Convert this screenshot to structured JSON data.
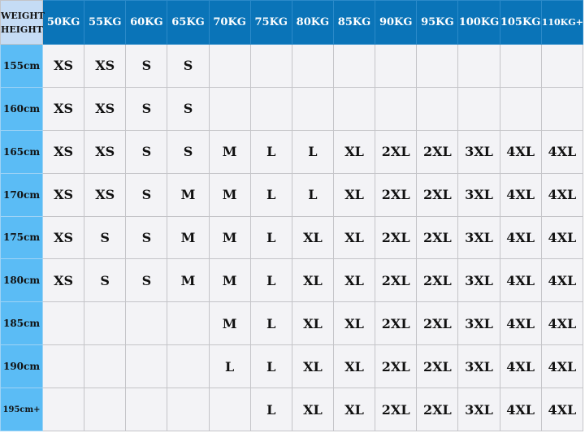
{
  "corner": {
    "line1": "WEIGHT",
    "line2": "HEIGHT"
  },
  "weights": [
    "50KG",
    "55KG",
    "60KG",
    "65KG",
    "70KG",
    "75KG",
    "80KG",
    "85KG",
    "90KG",
    "95KG",
    "100KG",
    "105KG",
    "110KG+"
  ],
  "rows": [
    {
      "height": "155cm",
      "sizes": [
        "XS",
        "XS",
        "S",
        "S",
        "",
        "",
        "",
        "",
        "",
        "",
        "",
        "",
        ""
      ]
    },
    {
      "height": "160cm",
      "sizes": [
        "XS",
        "XS",
        "S",
        "S",
        "",
        "",
        "",
        "",
        "",
        "",
        "",
        "",
        ""
      ]
    },
    {
      "height": "165cm",
      "sizes": [
        "XS",
        "XS",
        "S",
        "S",
        "M",
        "L",
        "L",
        "XL",
        "2XL",
        "2XL",
        "3XL",
        "4XL",
        "4XL"
      ]
    },
    {
      "height": "170cm",
      "sizes": [
        "XS",
        "XS",
        "S",
        "M",
        "M",
        "L",
        "L",
        "XL",
        "2XL",
        "2XL",
        "3XL",
        "4XL",
        "4XL"
      ]
    },
    {
      "height": "175cm",
      "sizes": [
        "XS",
        "S",
        "S",
        "M",
        "M",
        "L",
        "XL",
        "XL",
        "2XL",
        "2XL",
        "3XL",
        "4XL",
        "4XL"
      ]
    },
    {
      "height": "180cm",
      "sizes": [
        "XS",
        "S",
        "S",
        "M",
        "M",
        "L",
        "XL",
        "XL",
        "2XL",
        "2XL",
        "3XL",
        "4XL",
        "4XL"
      ]
    },
    {
      "height": "185cm",
      "sizes": [
        "",
        "",
        "",
        "",
        "M",
        "L",
        "XL",
        "XL",
        "2XL",
        "2XL",
        "3XL",
        "4XL",
        "4XL"
      ]
    },
    {
      "height": "190cm",
      "sizes": [
        "",
        "",
        "",
        "",
        "L",
        "L",
        "XL",
        "XL",
        "2XL",
        "2XL",
        "3XL",
        "4XL",
        "4XL"
      ]
    },
    {
      "height": "195cm+",
      "sizes": [
        "",
        "",
        "",
        "",
        "",
        "L",
        "XL",
        "XL",
        "2XL",
        "2XL",
        "3XL",
        "4XL",
        "4XL"
      ]
    }
  ],
  "colors": {
    "header": "#0a74b8",
    "corner": "#c5dcf5",
    "height_column": "#5bbcf5",
    "cell": "#f3f3f6"
  }
}
